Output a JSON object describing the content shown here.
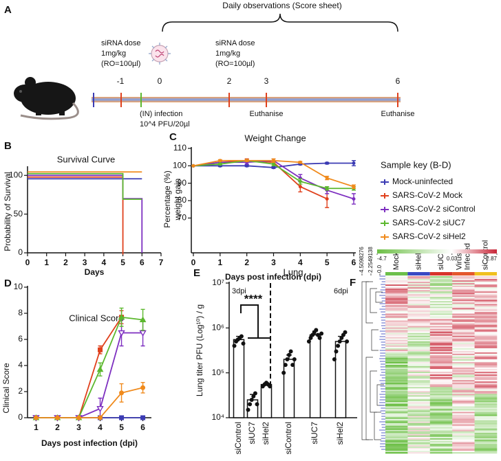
{
  "panel_labels": [
    "A",
    "B",
    "C",
    "D",
    "E",
    "F"
  ],
  "timeline": {
    "title": "Daily observations (Score sheet)",
    "ticks": [
      "-1",
      "0",
      "2",
      "3",
      "6"
    ],
    "dose_1": [
      "siRNA dose",
      "1mg/kg",
      "(RO=100µl)"
    ],
    "dose_2": [
      "siRNA dose",
      "1mg/kg",
      "(RO=100µl)"
    ],
    "infection": [
      "(IN) infection",
      "10^4 PFU/20µl"
    ],
    "euthanise": [
      "Euthanise",
      "Euthanise"
    ]
  },
  "chart_data": [
    {
      "type": "line",
      "step": true,
      "title": "Survival Curve",
      "xlabel": "Days",
      "ylabel": "Probability of Survival",
      "x": [
        0,
        1,
        2,
        3,
        4,
        5,
        6
      ],
      "xlim": [
        0,
        7
      ],
      "xticks": [
        0,
        1,
        2,
        3,
        4,
        5,
        6,
        7
      ],
      "ylim": [
        0,
        110
      ],
      "yticks": [
        0,
        50,
        100
      ],
      "series": [
        {
          "color": "#3b3bb3",
          "values": [
            100,
            100,
            100,
            100,
            100,
            100,
            100
          ]
        },
        {
          "color": "#e0401c",
          "values": [
            100,
            100,
            100,
            100,
            100,
            0,
            null
          ]
        },
        {
          "color": "#7d2fc0",
          "values": [
            100,
            100,
            100,
            100,
            100,
            70,
            0
          ]
        },
        {
          "color": "#5cb82e",
          "values": [
            100,
            100,
            100,
            100,
            100,
            67,
            67
          ]
        },
        {
          "color": "#f08a1c",
          "values": [
            100,
            100,
            100,
            100,
            100,
            100,
            100
          ]
        }
      ]
    },
    {
      "type": "line",
      "title": "Weight Change",
      "xlabel": "Days post infection (dpi)",
      "ylabel": [
        "Percentage (%)",
        "weight gain"
      ],
      "legend_title": "Sample key (B-D)",
      "x": [
        0,
        1,
        2,
        3,
        4,
        5,
        6
      ],
      "xlim": [
        0,
        6
      ],
      "xticks": [
        0,
        1,
        2,
        3,
        4,
        5,
        6
      ],
      "ylim": [
        50,
        110
      ],
      "yticks": [
        70,
        80,
        90,
        100,
        110
      ],
      "series": [
        {
          "name": "Mock-uninfected",
          "color": "#3b3bb3",
          "values": [
            100,
            100,
            100,
            99,
            101,
            101.5,
            101.5
          ],
          "errors": [
            0,
            0.5,
            0.5,
            0.5,
            0.5,
            0.5,
            1.5
          ]
        },
        {
          "name": "SARS-CoV-2 Mock",
          "color": "#e0401c",
          "values": [
            100,
            102,
            103,
            102,
            88,
            81,
            null
          ],
          "errors": [
            0,
            0.5,
            1,
            1,
            3,
            5,
            null
          ]
        },
        {
          "name": "SARS-CoV-2 siControl",
          "color": "#7d2fc0",
          "values": [
            100,
            102,
            102,
            103,
            93,
            86,
            81
          ],
          "errors": [
            0,
            0.5,
            1,
            1,
            2,
            2,
            3
          ]
        },
        {
          "name": "SARS-CoV-2 siUC7",
          "color": "#5cb82e",
          "values": [
            100,
            101,
            103,
            101,
            91,
            87,
            87
          ],
          "errors": [
            0,
            0.5,
            0.5,
            1,
            1.5,
            1,
            1
          ]
        },
        {
          "name": "SARS-CoV-2 siHel2",
          "color": "#f08a1c",
          "values": [
            100,
            103,
            103,
            103,
            102,
            93,
            88
          ],
          "errors": [
            0,
            0.5,
            0.5,
            1,
            0.5,
            1,
            1
          ]
        }
      ]
    },
    {
      "type": "line",
      "title": "Clinical Score",
      "xlabel": "Days post infection (dpi)",
      "ylabel": "Clinical Score",
      "x": [
        1,
        2,
        3,
        4,
        5,
        6
      ],
      "xlim": [
        0.6,
        6.4
      ],
      "xticks": [
        1,
        2,
        3,
        4,
        5,
        6
      ],
      "ylim": [
        0,
        10
      ],
      "yticks": [
        0,
        2,
        4,
        6,
        8,
        10
      ],
      "series": [
        {
          "color": "#3b3bb3",
          "marker": "square",
          "values": [
            0,
            0,
            0,
            0,
            0,
            0
          ],
          "errors": [
            0,
            0,
            0,
            0,
            0,
            0
          ]
        },
        {
          "color": "#e0401c",
          "marker": "square",
          "values": [
            0,
            0,
            0,
            5.2,
            7.7,
            null
          ],
          "errors": [
            0,
            0,
            0,
            0.3,
            0.5,
            null
          ]
        },
        {
          "color": "#7d2fc0",
          "marker": "triangle-down-open",
          "values": [
            0,
            0,
            0,
            0.7,
            6.5,
            6.5
          ],
          "errors": [
            0,
            0,
            0,
            0.8,
            1,
            1
          ]
        },
        {
          "color": "#5cb82e",
          "marker": "triangle",
          "values": [
            0,
            0,
            0,
            3.7,
            7.7,
            7.5
          ],
          "errors": [
            0,
            0,
            0,
            0.5,
            0.7,
            0.8
          ]
        },
        {
          "color": "#f08a1c",
          "marker": "circle",
          "values": [
            0,
            0,
            0,
            0,
            1.9,
            2.3
          ],
          "errors": [
            0,
            0,
            0,
            0,
            0.7,
            0.4
          ]
        }
      ]
    },
    {
      "type": "bar",
      "log": true,
      "title": "Lung",
      "ylabel": "Lung titer PFU (Log¹⁰) / g",
      "annotations": [
        "3dpi",
        "6dpi",
        "****"
      ],
      "categories": [
        "siControl",
        "siUC7",
        "siHel2",
        "siControl",
        "siUC7",
        "siHel2"
      ],
      "values": [
        550000,
        25000,
        55000,
        200000,
        700000,
        500000
      ],
      "errors": [
        100000,
        8000,
        5000,
        50000,
        150000,
        150000
      ],
      "points": [
        [
          400000,
          500000,
          550000,
          600000,
          650000,
          450000
        ],
        [
          15000,
          20000,
          25000,
          30000,
          35000,
          20000
        ],
        [
          50000,
          55000,
          60000,
          55000,
          50000
        ],
        [
          100000,
          150000,
          200000,
          250000,
          300000,
          150000,
          200000
        ],
        [
          500000,
          600000,
          700000,
          800000,
          900000,
          700000,
          600000,
          750000
        ],
        [
          200000,
          300000,
          400000,
          500000,
          600000,
          700000,
          800000,
          500000
        ]
      ],
      "ylim": [
        10000,
        10000000
      ],
      "yticks": [
        {
          "value": 10000,
          "label": "10⁴"
        },
        {
          "value": 100000,
          "label": "10⁵"
        },
        {
          "value": 1000000,
          "label": "10⁶"
        },
        {
          "value": 10000000,
          "label": "10⁷"
        }
      ]
    },
    {
      "type": "heatmap",
      "columns": [
        "Mock",
        "siHel2",
        "siUC7",
        "Virus Infected",
        "siControl"
      ],
      "colorbar_lim": [
        -4.7,
        2.87
      ],
      "colorbar_ticks": [
        -4.7,
        0.03,
        2.87
      ],
      "dendrogram_ticks": [
        4.5098276,
        2.2549138,
        {
          "value": 0,
          "label": "0.0"
        }
      ]
    }
  ]
}
